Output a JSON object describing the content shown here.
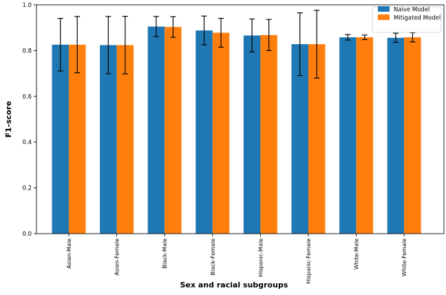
{
  "chart_data": {
    "type": "bar",
    "title": "",
    "xlabel": "Sex and racial subgroups",
    "ylabel": "F1-score",
    "ylim": [
      0.0,
      1.0
    ],
    "yticks": [
      "0.0",
      "0.2",
      "0.4",
      "0.6",
      "0.8",
      "1.0"
    ],
    "grid": false,
    "legend_position": "top-right",
    "categories": [
      "Asian-Male",
      "Asian-Female",
      "Black-Male",
      "Black-Female",
      "Hispanic-Male",
      "Hispanic-Female",
      "White-Male",
      "White-Female"
    ],
    "series": [
      {
        "name": "Naive Model",
        "color": "#1f77b4",
        "values": [
          0.826,
          0.824,
          0.905,
          0.888,
          0.866,
          0.828,
          0.858,
          0.856
        ],
        "error": [
          0.115,
          0.125,
          0.044,
          0.063,
          0.072,
          0.137,
          0.012,
          0.02
        ]
      },
      {
        "name": "Mitigated Model",
        "color": "#ff7f0e",
        "values": [
          0.826,
          0.824,
          0.903,
          0.878,
          0.868,
          0.828,
          0.858,
          0.858
        ],
        "error": [
          0.123,
          0.126,
          0.045,
          0.063,
          0.068,
          0.148,
          0.01,
          0.02
        ]
      }
    ]
  }
}
